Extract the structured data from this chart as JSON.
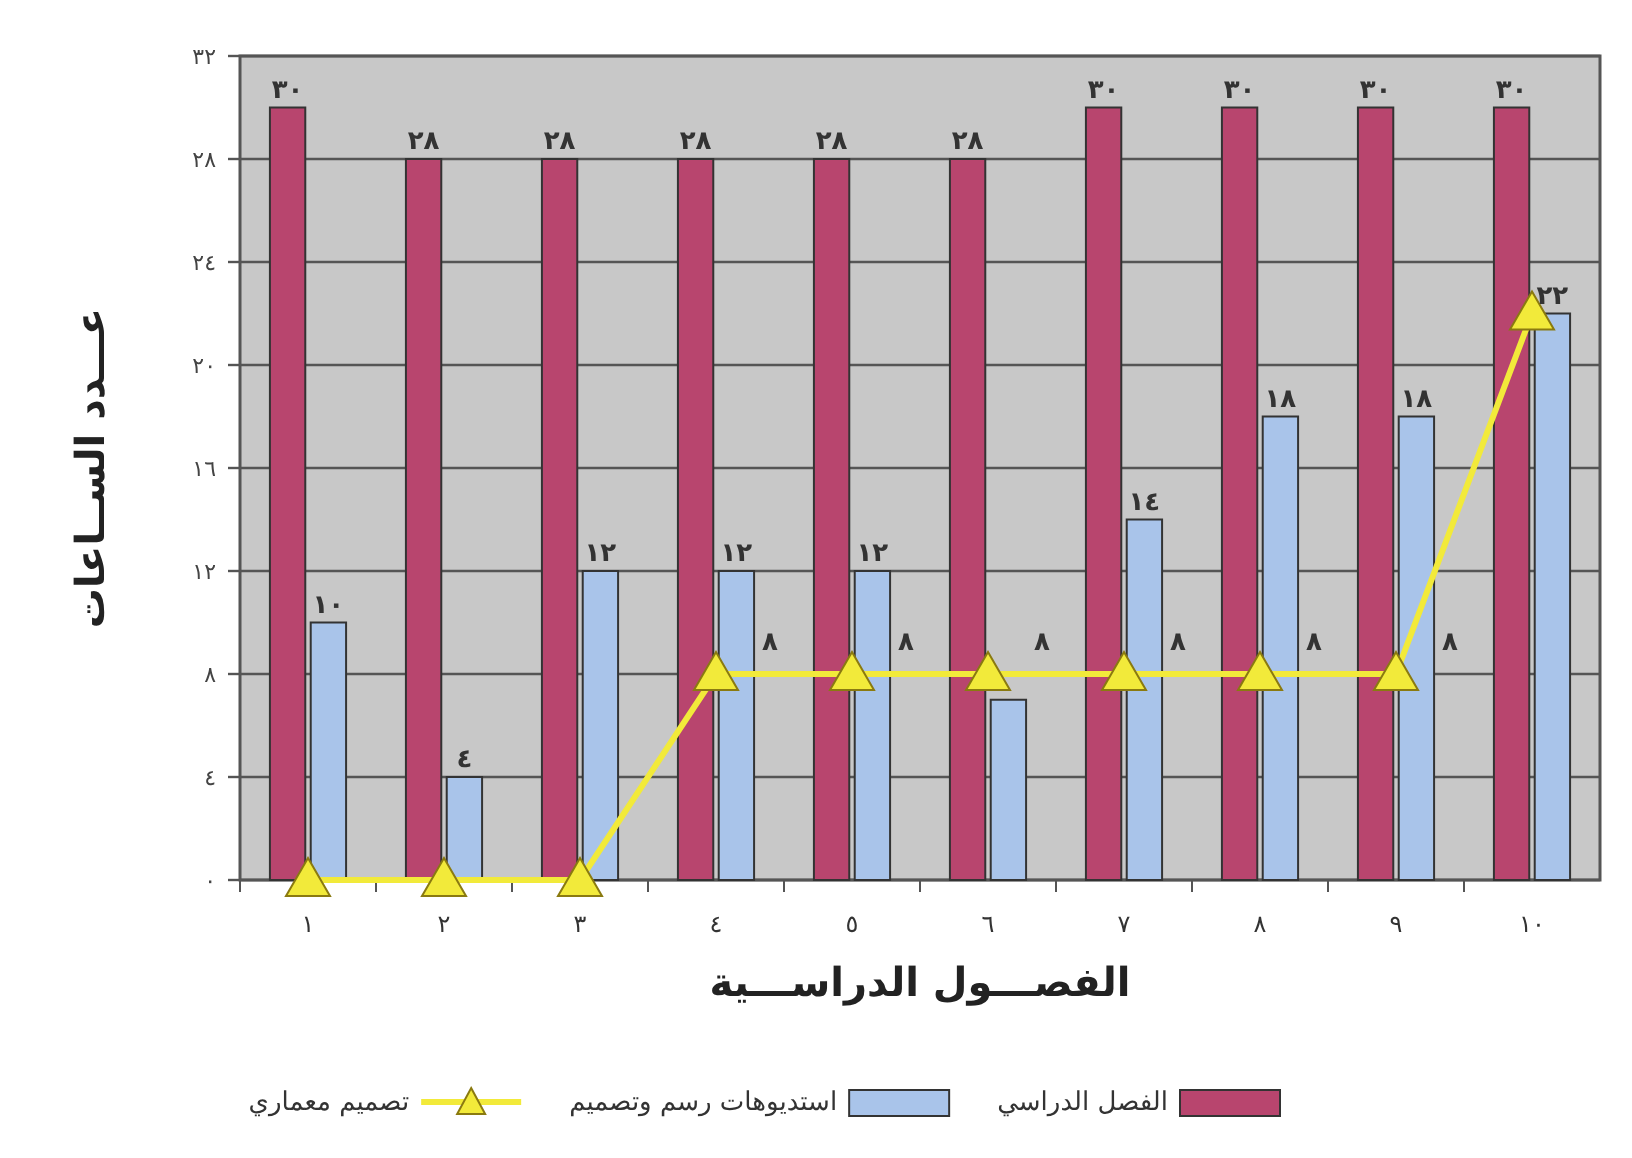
{
  "chart_data": {
    "type": "bar",
    "xlabel": "الفصـــول الدراســـية",
    "ylabel": "عـــدد الســاعات",
    "categories": [
      "١",
      "٢",
      "٣",
      "٤",
      "٥",
      "٦",
      "٧",
      "٨",
      "٩",
      "١٠"
    ],
    "series": [
      {
        "name": "الفصل الدراسي",
        "color": "#b8456e",
        "values": [
          30,
          28,
          28,
          28,
          28,
          28,
          30,
          30,
          30,
          30
        ],
        "value_labels": [
          "٣٠",
          "٢٨",
          "٢٨",
          "٢٨",
          "٢٨",
          "٢٨",
          "٣٠",
          "٣٠",
          "٣٠",
          "٣٠"
        ]
      },
      {
        "name": "استديوهات رسم وتصميم",
        "color": "#a9c4ea",
        "values": [
          10,
          4,
          12,
          12,
          12,
          7,
          14,
          18,
          18,
          22
        ],
        "value_labels": [
          "١٠",
          "٤",
          "١٢",
          "١٢",
          "١٢",
          null,
          "١٤",
          "١٨",
          "١٨",
          "٢٢"
        ]
      },
      {
        "name": "تصميم معماري",
        "type": "line",
        "color": "#f2ea3a",
        "marker": "triangle",
        "values": [
          0,
          0,
          0,
          8,
          8,
          8,
          8,
          8,
          8,
          22
        ],
        "value_labels": [
          null,
          null,
          null,
          "٨",
          "٨",
          "٨",
          "٨",
          "٨",
          "٨",
          null
        ]
      }
    ],
    "ylim": [
      0,
      32
    ],
    "yticks": [
      {
        "value": 0,
        "label": "٠"
      },
      {
        "value": 4,
        "label": "٤"
      },
      {
        "value": 8,
        "label": "٨"
      },
      {
        "value": 12,
        "label": "١٢"
      },
      {
        "value": 16,
        "label": "١٦"
      },
      {
        "value": 20,
        "label": "٢٠"
      },
      {
        "value": 24,
        "label": "٢٤"
      },
      {
        "value": 28,
        "label": "٢٨"
      },
      {
        "value": 32,
        "label": "٣٢"
      }
    ],
    "grid": "y",
    "legend": "bottom"
  }
}
